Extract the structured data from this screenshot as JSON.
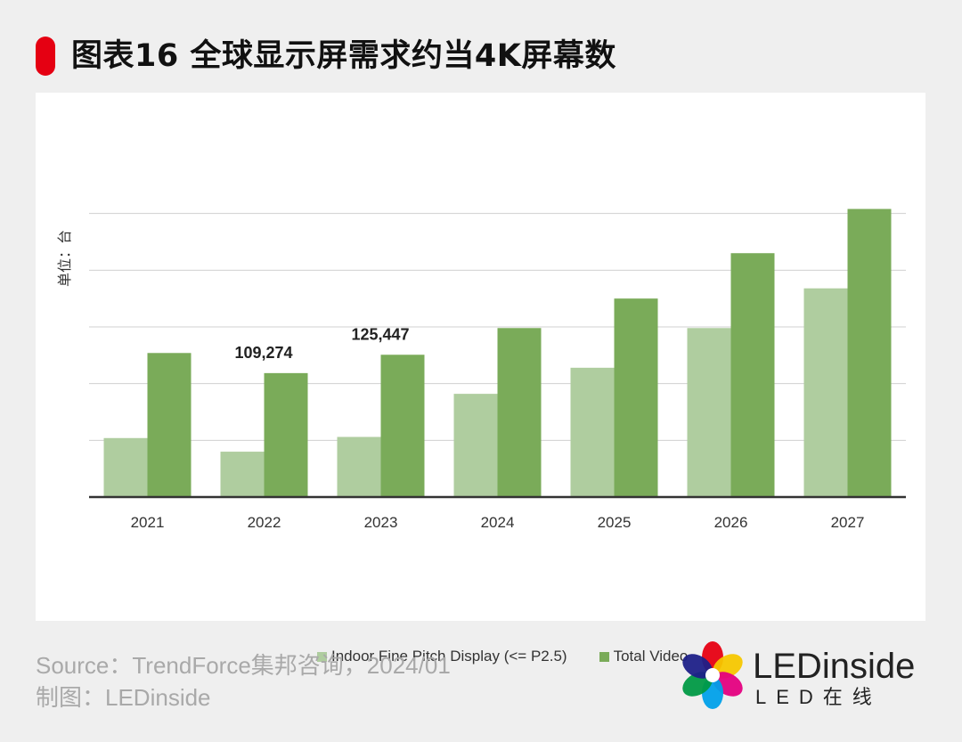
{
  "title": "图表16 全球显示屏需求约当4K屏幕数",
  "unit_label": "单位：台",
  "colors": {
    "accent": "#e50012",
    "indoor": "#afcd9f",
    "total": "#7aab59",
    "grid": "#d0d0d0",
    "axis": "#333333"
  },
  "chart_data": {
    "type": "bar",
    "categories": [
      "2021",
      "2022",
      "2023",
      "2024",
      "2025",
      "2026",
      "2027"
    ],
    "series": [
      {
        "name": "Indoor Fine Pitch Display (<= P2.5)",
        "values": [
          52000,
          40000,
          53000,
          91000,
          114000,
          149000,
          184000
        ]
      },
      {
        "name": "Total Video",
        "values": [
          127000,
          109274,
          125447,
          149000,
          175000,
          215000,
          254000
        ]
      }
    ],
    "data_labels": [
      {
        "series": 1,
        "index": 1,
        "text": "109,274"
      },
      {
        "series": 1,
        "index": 2,
        "text": "125,447"
      }
    ],
    "ylim": [
      0,
      300000
    ],
    "y_gridlines": [
      50000,
      100000,
      150000,
      200000,
      250000
    ],
    "ytick_labels_visible": false,
    "title": "图表16 全球显示屏需求约当4K屏幕数",
    "xlabel": "",
    "ylabel": "单位：台",
    "legend": "bottom-center"
  },
  "footer": {
    "source": "Source：TrendForce集邦咨询，2024/01",
    "credit": "制图：LEDinside"
  },
  "logo": {
    "name": "LEDinside",
    "sub": "LED在线"
  }
}
